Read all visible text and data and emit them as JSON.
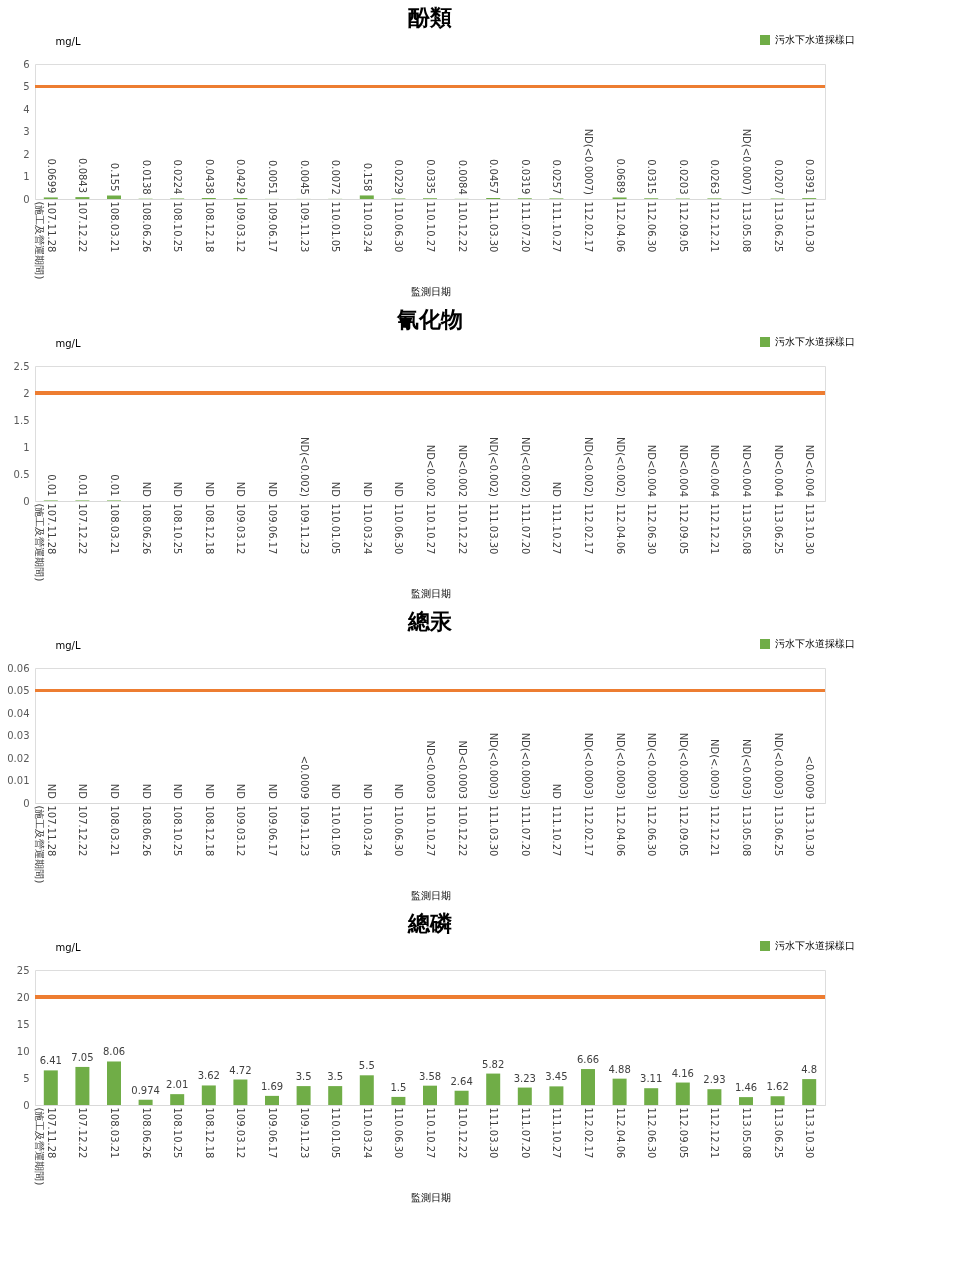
{
  "chart_data": [
    {
      "type": "bar",
      "title": "酚類",
      "ylabel": "mg/L",
      "xlabel": "監測日期",
      "legend": "top right",
      "grid": false,
      "categories": [
        "107.11.28 (施工及營運期間)",
        "107.12.22",
        "108.03.21",
        "108.06.26",
        "108.10.25",
        "108.12.18",
        "109.03.12",
        "109.06.17",
        "109.11.23",
        "110.01.05",
        "110.03.24",
        "110.06.30",
        "110.10.27",
        "110.12.22",
        "111.03.30",
        "111.07.20",
        "111.10.27",
        "112.02.17",
        "112.04.06",
        "112.06.30",
        "112.09.05",
        "112.12.21",
        "113.05.08",
        "113.06.25",
        "113.10.30"
      ],
      "series": [
        {
          "name": "污水下水道採樣口",
          "color": "#70ad47",
          "values": [
            0.0699,
            0.0843,
            0.155,
            0.0138,
            0.0224,
            0.0438,
            0.0429,
            0.0051,
            0.0045,
            0.0072,
            0.158,
            0.0229,
            0.0335,
            0.0084,
            0.0457,
            0.0319,
            0.0257,
            null,
            0.0689,
            0.0315,
            0.0203,
            0.0263,
            null,
            0.0207,
            0.0391
          ],
          "value_labels": [
            "0.0699",
            "0.0843",
            "0.155",
            "0.0138",
            "0.0224",
            "0.0438",
            "0.0429",
            "0.0051",
            "0.0045",
            "0.0072",
            "0.158",
            "0.0229",
            "0.0335",
            "0.0084",
            "0.0457",
            "0.0319",
            "0.0257",
            "ND(<0.0007)",
            "0.0689",
            "0.0315",
            "0.0203",
            "0.0263",
            "ND(<0.0007)",
            "0.0207",
            "0.0391"
          ]
        }
      ],
      "ylim": [
        0,
        6
      ],
      "yticks": [
        0,
        1,
        2,
        3,
        4,
        5,
        6
      ],
      "ref_lines": [
        {
          "axis": "y",
          "value": 5,
          "color": "#ed7d31"
        }
      ]
    },
    {
      "type": "bar",
      "title": "氰化物",
      "ylabel": "mg/L",
      "xlabel": "監測日期",
      "legend": "top right",
      "grid": false,
      "categories": [
        "107.11.28 (施工及營運期間)",
        "107.12.22",
        "108.03.21",
        "108.06.26",
        "108.10.25",
        "108.12.18",
        "109.03.12",
        "109.06.17",
        "109.11.23",
        "110.01.05",
        "110.03.24",
        "110.06.30",
        "110.10.27",
        "110.12.22",
        "111.03.30",
        "111.07.20",
        "111.10.27",
        "112.02.17",
        "112.04.06",
        "112.06.30",
        "112.09.05",
        "112.12.21",
        "113.05.08",
        "113.06.25",
        "113.10.30"
      ],
      "series": [
        {
          "name": "污水下水道採樣口",
          "color": "#70ad47",
          "values": [
            0.01,
            0.01,
            0.01,
            null,
            null,
            null,
            null,
            null,
            null,
            null,
            null,
            null,
            null,
            null,
            null,
            null,
            null,
            null,
            null,
            null,
            null,
            null,
            null,
            null,
            null
          ],
          "value_labels": [
            "0.01",
            "0.01",
            "0.01",
            "ND",
            "ND",
            "ND",
            "ND",
            "ND",
            "ND(<0.002)",
            "ND",
            "ND",
            "ND",
            "ND<0.002",
            "ND<0.002",
            "ND(<0.002)",
            "ND(<0.002)",
            "ND",
            "ND(<0.002)",
            "ND(<0.002)",
            "ND<0.004",
            "ND<0.004",
            "ND<0.004",
            "ND<0.004",
            "ND<0.004",
            "ND<0.004"
          ]
        }
      ],
      "ylim": [
        0,
        2.5
      ],
      "yticks": [
        0,
        0.5,
        1,
        1.5,
        2,
        2.5
      ],
      "ref_lines": [
        {
          "axis": "y",
          "value": 2,
          "color": "#ed7d31"
        }
      ]
    },
    {
      "type": "bar",
      "title": "總汞",
      "ylabel": "mg/L",
      "xlabel": "監測日期",
      "legend": "top right",
      "grid": false,
      "categories": [
        "107.11.28 (施工及營運期間)",
        "107.12.22",
        "108.03.21",
        "108.06.26",
        "108.10.25",
        "108.12.18",
        "109.03.12",
        "109.06.17",
        "109.11.23",
        "110.01.05",
        "110.03.24",
        "110.06.30",
        "110.10.27",
        "110.12.22",
        "111.03.30",
        "111.07.20",
        "111.10.27",
        "112.02.17",
        "112.04.06",
        "112.06.30",
        "112.09.05",
        "112.12.21",
        "113.05.08",
        "113.06.25",
        "113.10.30"
      ],
      "series": [
        {
          "name": "污水下水道採樣口",
          "color": "#70ad47",
          "values": [
            null,
            null,
            null,
            null,
            null,
            null,
            null,
            null,
            null,
            null,
            null,
            null,
            null,
            null,
            null,
            null,
            null,
            null,
            null,
            null,
            null,
            null,
            null,
            null,
            null
          ],
          "value_labels": [
            "ND",
            "ND",
            "ND",
            "ND",
            "ND",
            "ND",
            "ND",
            "ND",
            "<0.0009",
            "ND",
            "ND",
            "ND",
            "ND<0.0003",
            "ND<0.0003",
            "ND(<0.0003)",
            "ND(<0.0003)",
            "ND",
            "ND(<0.0003)",
            "ND(<0.0003)",
            "ND(<0.0003)",
            "ND(<0.0003)",
            "ND(<.0003)",
            "ND(<0.003)",
            "ND(<0.0003)",
            "<0.0009"
          ]
        }
      ],
      "ylim": [
        0,
        0.06
      ],
      "yticks": [
        0,
        0.01,
        0.02,
        0.03,
        0.04,
        0.05,
        0.06
      ],
      "ref_lines": [
        {
          "axis": "y",
          "value": 0.05,
          "color": "#ed7d31"
        }
      ]
    },
    {
      "type": "bar",
      "title": "總磷",
      "ylabel": "mg/L",
      "xlabel": "監測日期",
      "legend": "top right",
      "grid": false,
      "data_labels": true,
      "categories": [
        "107.11.28 (施工及營運期間)",
        "107.12.22",
        "108.03.21",
        "108.06.26",
        "108.10.25",
        "108.12.18",
        "109.03.12",
        "109.06.17",
        "109.11.23",
        "110.01.05",
        "110.03.24",
        "110.06.30",
        "110.10.27",
        "110.12.22",
        "111.03.30",
        "111.07.20",
        "111.10.27",
        "112.02.17",
        "112.04.06",
        "112.06.30",
        "112.09.05",
        "112.12.21",
        "113.05.08",
        "113.06.25",
        "113.10.30"
      ],
      "series": [
        {
          "name": "污水下水道採樣口",
          "color": "#70ad47",
          "values": [
            6.41,
            7.05,
            8.06,
            0.974,
            2.01,
            3.62,
            4.72,
            1.69,
            3.5,
            3.5,
            5.5,
            1.5,
            3.58,
            2.64,
            5.82,
            3.23,
            3.45,
            6.66,
            4.88,
            3.11,
            4.16,
            2.93,
            1.46,
            1.62,
            4.8
          ]
        }
      ],
      "ylim": [
        0,
        25
      ],
      "yticks": [
        0,
        5,
        10,
        15,
        20,
        25
      ],
      "ref_lines": [
        {
          "axis": "y",
          "value": 20,
          "color": "#ed7d31"
        }
      ]
    }
  ]
}
